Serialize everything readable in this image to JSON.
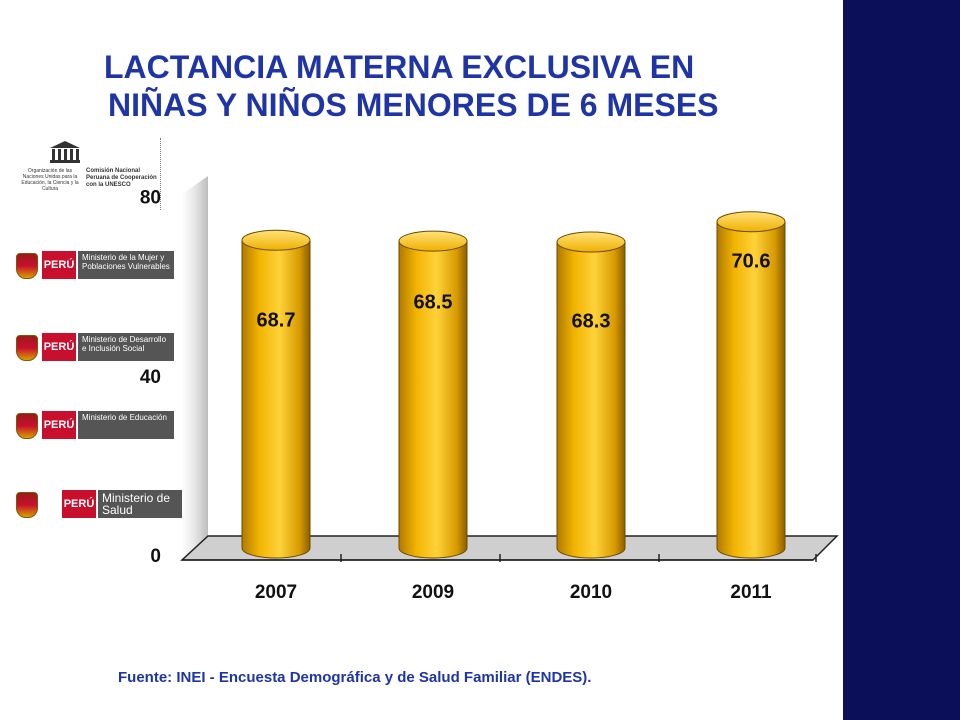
{
  "title_line1": "LACTANCIA MATERNA EXCLUSIVA EN",
  "title_line2": "NIÑAS Y NIÑOS MENORES DE 6 MESES",
  "source": "Fuente: INEI - Encuesta Demográfica y de Salud Familiar (ENDES).",
  "colors": {
    "band": "#0b0f5a",
    "title": "#1f35a6",
    "bar": "#f2b300"
  },
  "logos": {
    "unesco": {
      "left_text": "Organización de las Naciones Unidas para la Educación, la Ciencia y la Cultura",
      "right_text": "Comisión Nacional Peruana de Cooperación con la UNESCO"
    },
    "ministries": [
      {
        "flag": "PERÚ",
        "text": "Ministerio de la Mujer y Poblaciones Vulnerables"
      },
      {
        "flag": "PERÚ",
        "text": "Ministerio de Desarrollo e Inclusión Social"
      },
      {
        "flag": "PERÚ",
        "text": "Ministerio de Educación"
      },
      {
        "flag": "PERÚ",
        "text": "Ministerio de Salud"
      }
    ]
  },
  "chart_data": {
    "type": "bar",
    "title": "",
    "xlabel": "",
    "ylabel": "",
    "categories": [
      "2007",
      "2009",
      "2010",
      "2011"
    ],
    "values": [
      68.7,
      68.5,
      68.3,
      70.6
    ],
    "data_labels": [
      "68.7",
      "68.5",
      "68.3",
      "70.6"
    ],
    "y_ticks": [
      "0",
      "40",
      "80"
    ],
    "ylim": [
      0,
      80
    ],
    "grid": false,
    "legend": "none"
  }
}
